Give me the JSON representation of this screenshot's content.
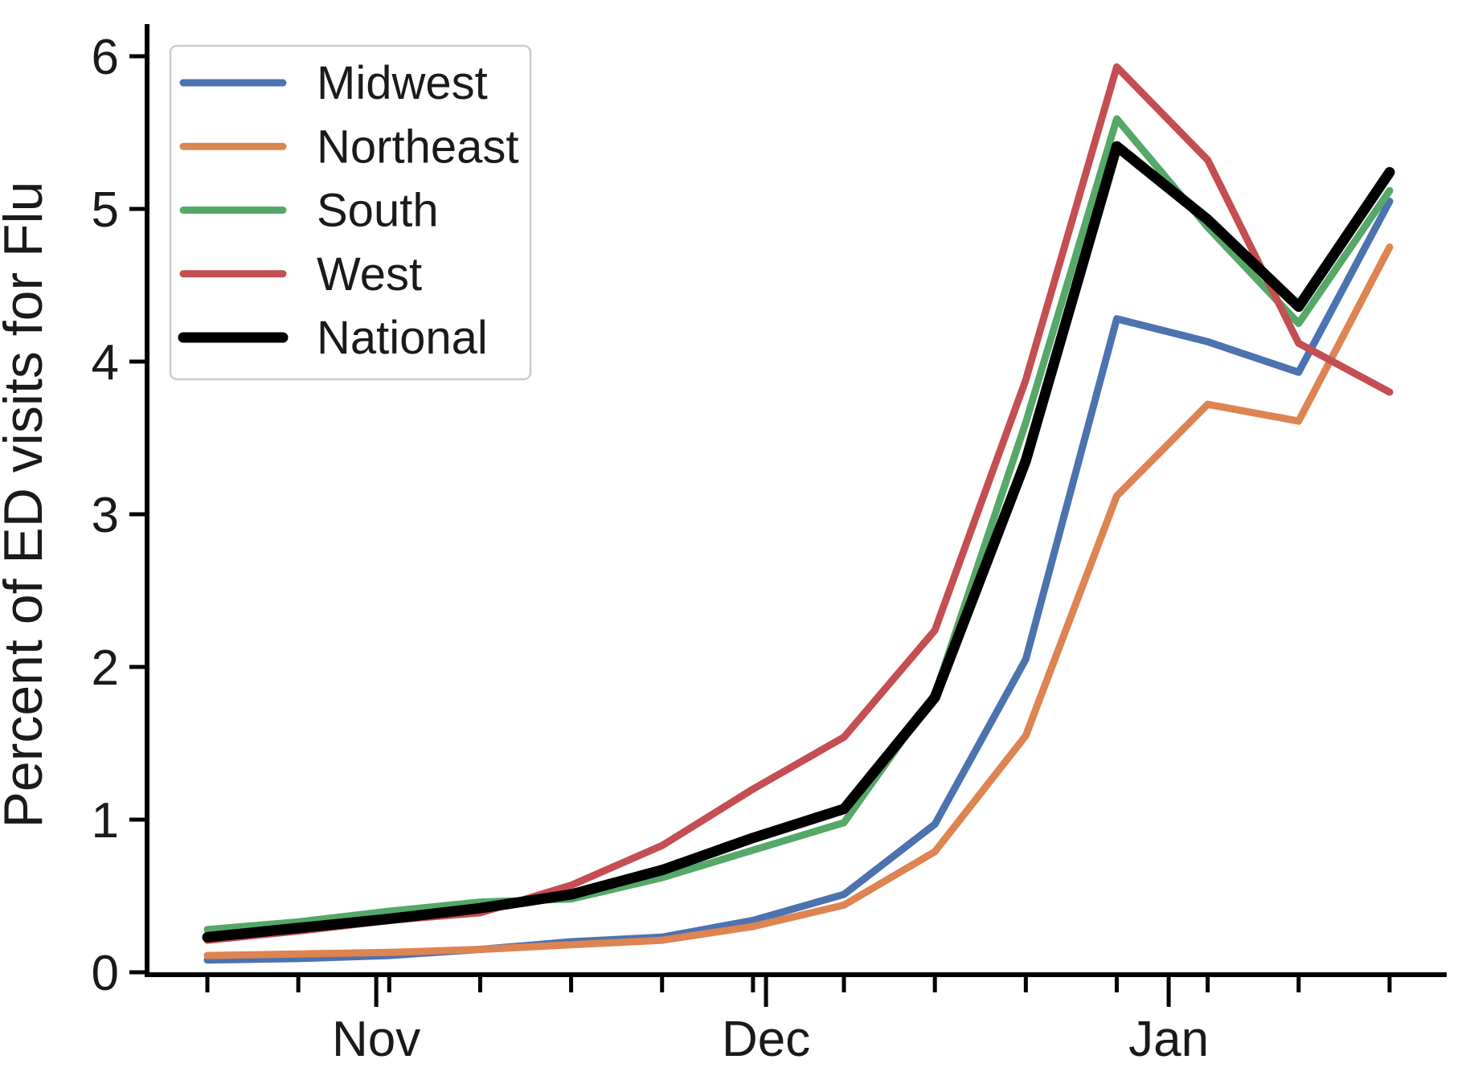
{
  "chart_data": {
    "type": "line",
    "title": "",
    "xlabel": "",
    "ylabel": "Percent of ED visits for Flu",
    "x_unit": "week",
    "n_points": 14,
    "x_month_ticks": [
      {
        "label": "Nov",
        "week_offset": 1.857
      },
      {
        "label": "Dec",
        "week_offset": 6.143
      },
      {
        "label": "Jan",
        "week_offset": 10.571
      }
    ],
    "y_ticks": [
      0,
      1,
      2,
      3,
      4,
      5,
      6
    ],
    "ylim": [
      0,
      6.2
    ],
    "grid": "off",
    "legend_position": "upper left",
    "series": [
      {
        "name": "Midwest",
        "color": "#4C72B0",
        "line_width": 9,
        "values": [
          0.08,
          0.09,
          0.11,
          0.15,
          0.2,
          0.23,
          0.34,
          0.51,
          0.97,
          2.05,
          4.28,
          4.13,
          3.93,
          5.05
        ]
      },
      {
        "name": "Northeast",
        "color": "#DD8452",
        "line_width": 9,
        "values": [
          0.11,
          0.12,
          0.13,
          0.15,
          0.18,
          0.21,
          0.3,
          0.44,
          0.79,
          1.55,
          3.12,
          3.72,
          3.61,
          4.75
        ]
      },
      {
        "name": "South",
        "color": "#55A868",
        "line_width": 9,
        "values": [
          0.28,
          0.33,
          0.4,
          0.46,
          0.48,
          0.62,
          0.8,
          0.98,
          1.82,
          3.6,
          5.59,
          4.88,
          4.25,
          5.12
        ]
      },
      {
        "name": "West",
        "color": "#C44E52",
        "line_width": 9,
        "values": [
          0.21,
          0.27,
          0.34,
          0.39,
          0.57,
          0.83,
          1.2,
          1.54,
          2.24,
          3.88,
          5.93,
          5.32,
          4.12,
          3.8
        ]
      },
      {
        "name": "National",
        "color": "#000000",
        "line_width": 13,
        "values": [
          0.23,
          0.29,
          0.35,
          0.42,
          0.51,
          0.67,
          0.88,
          1.07,
          1.8,
          3.35,
          5.41,
          4.93,
          4.36,
          5.24
        ]
      }
    ]
  }
}
